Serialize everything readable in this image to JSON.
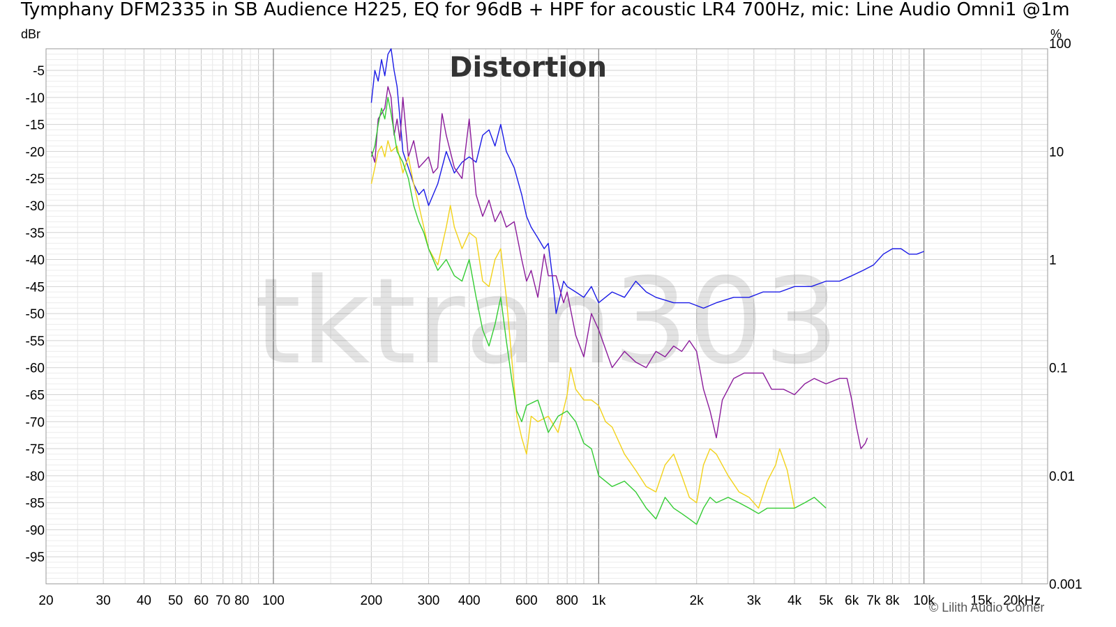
{
  "chart_data": {
    "type": "line",
    "title": "Tymphany DFM2335 in SB Audience H225, EQ for 96dB + HPF for acoustic LR4 700Hz, mic: Line Audio Omni1 @1m",
    "annotation": "Distortion",
    "watermark": "tktran303",
    "copyright": "© Lilith Audio Corner",
    "x_scale": "log",
    "xlim": [
      20,
      24000
    ],
    "x_ticks": [
      {
        "v": 20,
        "label": "20"
      },
      {
        "v": 30,
        "label": "30"
      },
      {
        "v": 40,
        "label": "40"
      },
      {
        "v": 50,
        "label": "50"
      },
      {
        "v": 60,
        "label": "60"
      },
      {
        "v": 70,
        "label": "70"
      },
      {
        "v": 80,
        "label": "80"
      },
      {
        "v": 100,
        "label": "100"
      },
      {
        "v": 200,
        "label": "200"
      },
      {
        "v": 300,
        "label": "300"
      },
      {
        "v": 400,
        "label": "400"
      },
      {
        "v": 600,
        "label": "600"
      },
      {
        "v": 800,
        "label": "800"
      },
      {
        "v": 1000,
        "label": "1k"
      },
      {
        "v": 2000,
        "label": "2k"
      },
      {
        "v": 3000,
        "label": "3k"
      },
      {
        "v": 4000,
        "label": "4k"
      },
      {
        "v": 5000,
        "label": "5k"
      },
      {
        "v": 6000,
        "label": "6k"
      },
      {
        "v": 7000,
        "label": "7k"
      },
      {
        "v": 8000,
        "label": "8k"
      },
      {
        "v": 10000,
        "label": "10k"
      },
      {
        "v": 15000,
        "label": "15k"
      },
      {
        "v": 20000,
        "label": "20kHz"
      }
    ],
    "y_left": {
      "unit": "dBr",
      "ylim": [
        -100,
        -1
      ],
      "ticks": [
        -5,
        -10,
        -15,
        -20,
        -25,
        -30,
        -35,
        -40,
        -45,
        -50,
        -55,
        -60,
        -65,
        -70,
        -75,
        -80,
        -85,
        -90,
        -95
      ]
    },
    "y_right": {
      "unit": "%",
      "ticks": [
        {
          "v": 100,
          "label": "100"
        },
        {
          "v": 10,
          "label": "10"
        },
        {
          "v": 1,
          "label": "1"
        },
        {
          "v": 0.1,
          "label": "0.1"
        },
        {
          "v": 0.01,
          "label": "0.01"
        },
        {
          "v": 0.001,
          "label": "0.001"
        }
      ]
    },
    "grid": true,
    "series": [
      {
        "color": "#1a1ae6",
        "points": [
          [
            200,
            -11
          ],
          [
            205,
            -5
          ],
          [
            210,
            -7
          ],
          [
            215,
            -3
          ],
          [
            220,
            -6
          ],
          [
            225,
            -2
          ],
          [
            230,
            -1
          ],
          [
            235,
            -5
          ],
          [
            240,
            -8
          ],
          [
            245,
            -14
          ],
          [
            250,
            -20
          ],
          [
            260,
            -23
          ],
          [
            270,
            -26
          ],
          [
            280,
            -28
          ],
          [
            290,
            -27
          ],
          [
            300,
            -30
          ],
          [
            320,
            -26
          ],
          [
            340,
            -20
          ],
          [
            360,
            -24
          ],
          [
            380,
            -22
          ],
          [
            400,
            -21
          ],
          [
            420,
            -22
          ],
          [
            440,
            -17
          ],
          [
            460,
            -16
          ],
          [
            480,
            -19
          ],
          [
            500,
            -15
          ],
          [
            520,
            -20
          ],
          [
            550,
            -23
          ],
          [
            580,
            -28
          ],
          [
            600,
            -32
          ],
          [
            620,
            -34
          ],
          [
            650,
            -36
          ],
          [
            680,
            -38
          ],
          [
            700,
            -37
          ],
          [
            720,
            -43
          ],
          [
            740,
            -50
          ],
          [
            760,
            -47
          ],
          [
            780,
            -44
          ],
          [
            800,
            -45
          ],
          [
            850,
            -46
          ],
          [
            900,
            -47
          ],
          [
            950,
            -45
          ],
          [
            1000,
            -48
          ],
          [
            1100,
            -46
          ],
          [
            1200,
            -47
          ],
          [
            1300,
            -44
          ],
          [
            1400,
            -46
          ],
          [
            1500,
            -47
          ],
          [
            1700,
            -48
          ],
          [
            1900,
            -48
          ],
          [
            2100,
            -49
          ],
          [
            2300,
            -48
          ],
          [
            2600,
            -47
          ],
          [
            2900,
            -47
          ],
          [
            3200,
            -46
          ],
          [
            3600,
            -46
          ],
          [
            4000,
            -45
          ],
          [
            4500,
            -45
          ],
          [
            5000,
            -44
          ],
          [
            5500,
            -44
          ],
          [
            6000,
            -43
          ],
          [
            6500,
            -42
          ],
          [
            7000,
            -41
          ],
          [
            7500,
            -39
          ],
          [
            8000,
            -38
          ],
          [
            8500,
            -38
          ],
          [
            9000,
            -39
          ],
          [
            9500,
            -39
          ],
          [
            10000,
            -38.5
          ]
        ]
      },
      {
        "color": "#8a1a9a",
        "points": [
          [
            200,
            -20
          ],
          [
            205,
            -22
          ],
          [
            210,
            -14
          ],
          [
            220,
            -12
          ],
          [
            225,
            -8
          ],
          [
            230,
            -10
          ],
          [
            235,
            -17
          ],
          [
            240,
            -14
          ],
          [
            245,
            -18
          ],
          [
            250,
            -10
          ],
          [
            260,
            -21
          ],
          [
            270,
            -18
          ],
          [
            280,
            -23
          ],
          [
            290,
            -22
          ],
          [
            300,
            -21
          ],
          [
            310,
            -24
          ],
          [
            320,
            -23
          ],
          [
            330,
            -13
          ],
          [
            340,
            -17
          ],
          [
            360,
            -23
          ],
          [
            380,
            -25
          ],
          [
            400,
            -14
          ],
          [
            420,
            -28
          ],
          [
            440,
            -32
          ],
          [
            460,
            -29
          ],
          [
            480,
            -33
          ],
          [
            500,
            -31
          ],
          [
            520,
            -34
          ],
          [
            550,
            -33
          ],
          [
            580,
            -40
          ],
          [
            600,
            -44
          ],
          [
            620,
            -42
          ],
          [
            650,
            -47
          ],
          [
            680,
            -39
          ],
          [
            700,
            -43
          ],
          [
            740,
            -43
          ],
          [
            780,
            -48
          ],
          [
            800,
            -46
          ],
          [
            850,
            -54
          ],
          [
            900,
            -58
          ],
          [
            950,
            -50
          ],
          [
            1000,
            -53
          ],
          [
            1100,
            -60
          ],
          [
            1200,
            -57
          ],
          [
            1300,
            -59
          ],
          [
            1400,
            -60
          ],
          [
            1500,
            -57
          ],
          [
            1600,
            -58
          ],
          [
            1700,
            -56
          ],
          [
            1800,
            -57
          ],
          [
            1900,
            -55
          ],
          [
            2000,
            -57
          ],
          [
            2100,
            -64
          ],
          [
            2200,
            -68
          ],
          [
            2300,
            -73
          ],
          [
            2400,
            -66
          ],
          [
            2600,
            -62
          ],
          [
            2800,
            -61
          ],
          [
            3200,
            -61
          ],
          [
            3400,
            -64
          ],
          [
            3700,
            -64
          ],
          [
            4000,
            -65
          ],
          [
            4300,
            -63
          ],
          [
            4600,
            -62
          ],
          [
            5000,
            -63
          ],
          [
            5500,
            -62
          ],
          [
            5800,
            -62
          ],
          [
            6000,
            -66
          ],
          [
            6200,
            -71
          ],
          [
            6400,
            -75
          ],
          [
            6600,
            -74
          ],
          [
            6700,
            -73
          ]
        ]
      },
      {
        "color": "#f2d21a",
        "points": [
          [
            200,
            -26
          ],
          [
            205,
            -23
          ],
          [
            210,
            -20
          ],
          [
            215,
            -19
          ],
          [
            220,
            -21
          ],
          [
            225,
            -18
          ],
          [
            230,
            -20
          ],
          [
            240,
            -19
          ],
          [
            250,
            -24
          ],
          [
            260,
            -21
          ],
          [
            270,
            -26
          ],
          [
            280,
            -30
          ],
          [
            290,
            -34
          ],
          [
            300,
            -38
          ],
          [
            320,
            -41
          ],
          [
            340,
            -34
          ],
          [
            350,
            -30
          ],
          [
            360,
            -34
          ],
          [
            380,
            -38
          ],
          [
            400,
            -35
          ],
          [
            420,
            -36
          ],
          [
            440,
            -44
          ],
          [
            460,
            -45
          ],
          [
            480,
            -40
          ],
          [
            500,
            -38
          ],
          [
            520,
            -47
          ],
          [
            540,
            -58
          ],
          [
            560,
            -69
          ],
          [
            580,
            -73
          ],
          [
            600,
            -76
          ],
          [
            620,
            -69
          ],
          [
            650,
            -70
          ],
          [
            700,
            -69
          ],
          [
            750,
            -72
          ],
          [
            800,
            -65
          ],
          [
            820,
            -60
          ],
          [
            850,
            -64
          ],
          [
            900,
            -66
          ],
          [
            950,
            -66
          ],
          [
            1000,
            -67
          ],
          [
            1050,
            -70
          ],
          [
            1100,
            -71
          ],
          [
            1200,
            -76
          ],
          [
            1300,
            -79
          ],
          [
            1400,
            -82
          ],
          [
            1500,
            -83
          ],
          [
            1600,
            -78
          ],
          [
            1700,
            -76
          ],
          [
            1800,
            -80
          ],
          [
            1900,
            -84
          ],
          [
            2000,
            -85
          ],
          [
            2100,
            -78
          ],
          [
            2200,
            -75
          ],
          [
            2300,
            -76
          ],
          [
            2500,
            -80
          ],
          [
            2700,
            -83
          ],
          [
            2900,
            -84
          ],
          [
            3100,
            -86
          ],
          [
            3300,
            -81
          ],
          [
            3500,
            -78
          ],
          [
            3600,
            -75
          ],
          [
            3800,
            -79
          ],
          [
            4000,
            -86
          ]
        ]
      },
      {
        "color": "#33cc33",
        "points": [
          [
            200,
            -21
          ],
          [
            205,
            -19
          ],
          [
            210,
            -15
          ],
          [
            215,
            -12
          ],
          [
            220,
            -14
          ],
          [
            225,
            -10
          ],
          [
            230,
            -13
          ],
          [
            240,
            -20
          ],
          [
            250,
            -22
          ],
          [
            260,
            -25
          ],
          [
            270,
            -30
          ],
          [
            280,
            -33
          ],
          [
            290,
            -35
          ],
          [
            300,
            -38
          ],
          [
            320,
            -42
          ],
          [
            340,
            -40
          ],
          [
            360,
            -43
          ],
          [
            380,
            -44
          ],
          [
            400,
            -40
          ],
          [
            420,
            -47
          ],
          [
            440,
            -53
          ],
          [
            460,
            -56
          ],
          [
            480,
            -52
          ],
          [
            500,
            -47
          ],
          [
            520,
            -55
          ],
          [
            540,
            -62
          ],
          [
            560,
            -68
          ],
          [
            580,
            -70
          ],
          [
            600,
            -67
          ],
          [
            650,
            -66
          ],
          [
            700,
            -72
          ],
          [
            750,
            -69
          ],
          [
            800,
            -68
          ],
          [
            850,
            -70
          ],
          [
            900,
            -74
          ],
          [
            950,
            -75
          ],
          [
            1000,
            -80
          ],
          [
            1100,
            -82
          ],
          [
            1200,
            -81
          ],
          [
            1300,
            -83
          ],
          [
            1400,
            -86
          ],
          [
            1500,
            -88
          ],
          [
            1600,
            -84
          ],
          [
            1700,
            -86
          ],
          [
            1800,
            -87
          ],
          [
            1900,
            -88
          ],
          [
            2000,
            -89
          ],
          [
            2100,
            -86
          ],
          [
            2200,
            -84
          ],
          [
            2300,
            -85
          ],
          [
            2500,
            -84
          ],
          [
            2700,
            -85
          ],
          [
            2900,
            -86
          ],
          [
            3100,
            -87
          ],
          [
            3300,
            -86
          ],
          [
            3600,
            -86
          ],
          [
            4000,
            -86
          ],
          [
            4300,
            -85
          ],
          [
            4600,
            -84
          ],
          [
            5000,
            -86
          ]
        ]
      }
    ]
  }
}
